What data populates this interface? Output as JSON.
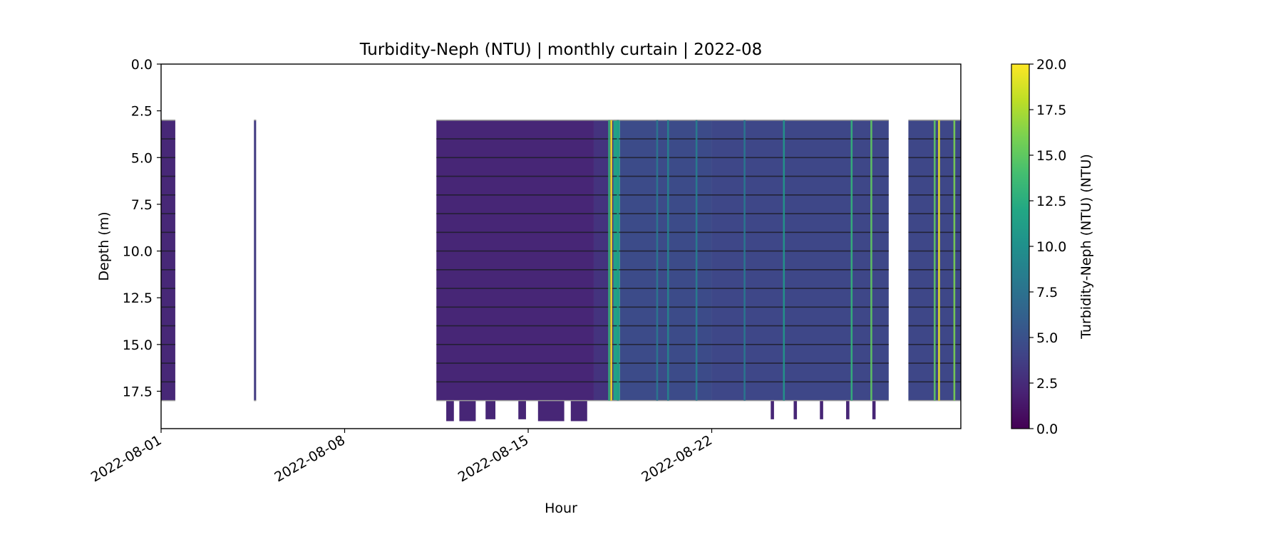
{
  "chart_data": {
    "type": "heatmap",
    "title": "Turbidity-Neph (NTU) | monthly curtain | 2022-08",
    "xlabel": "Hour",
    "ylabel": "Depth (m)",
    "colorbar_label": "Turbidity-Neph (NTU) (NTU)",
    "colormap": "viridis",
    "colorbar_range": [
      0,
      20
    ],
    "colorbar_ticks": [
      "0.0",
      "2.5",
      "5.0",
      "7.5",
      "10.0",
      "12.5",
      "15.0",
      "17.5",
      "20.0"
    ],
    "x_range": [
      "2022-08-01",
      "2022-08-31T12:00"
    ],
    "x_ticks": [
      {
        "date": "2022-08-01",
        "label": "2022-08-01"
      },
      {
        "date": "2022-08-08",
        "label": "2022-08-08"
      },
      {
        "date": "2022-08-15",
        "label": "2022-08-15"
      },
      {
        "date": "2022-08-22",
        "label": "2022-08-22"
      }
    ],
    "y_range": [
      0,
      19.5
    ],
    "y_inverted": true,
    "y_ticks": [
      "0.0",
      "2.5",
      "5.0",
      "7.5",
      "10.0",
      "12.5",
      "15.0",
      "17.5"
    ],
    "grid": false,
    "sample_depths": [
      3,
      4,
      5,
      6,
      7,
      8,
      9,
      10,
      11,
      12,
      13,
      14,
      15,
      16,
      17,
      18
    ],
    "segments": [
      {
        "start": "2022-08-01T00:00",
        "end": "2022-08-01T13:00",
        "depth_top": 3.0,
        "depth_bottom": 18.0,
        "turbidity": 2.3
      },
      {
        "start": "2022-08-04T13:00",
        "end": "2022-08-04T15:00",
        "depth_top": 3.0,
        "depth_bottom": 18.0,
        "turbidity": 3.5
      },
      {
        "start": "2022-08-11T12:00",
        "end": "2022-08-17T12:00",
        "depth_top": 3.0,
        "depth_bottom": 18.0,
        "turbidity": 2.2
      },
      {
        "start": "2022-08-17T12:00",
        "end": "2022-08-18T06:00",
        "depth_top": 3.0,
        "depth_bottom": 18.0,
        "turbidity": 3.0
      },
      {
        "start": "2022-08-18T06:00",
        "end": "2022-08-18T12:00",
        "depth_top": 3.0,
        "depth_bottom": 18.0,
        "turbidity": 11.5
      },
      {
        "start": "2022-08-18T12:00",
        "end": "2022-08-22T00:00",
        "depth_top": 3.0,
        "depth_bottom": 18.0,
        "turbidity": 4.6
      },
      {
        "start": "2022-08-22T00:00",
        "end": "2022-08-28T18:00",
        "depth_top": 3.0,
        "depth_bottom": 18.0,
        "turbidity": 4.3
      },
      {
        "start": "2022-08-29T12:00",
        "end": "2022-08-31T12:00",
        "depth_top": 3.0,
        "depth_bottom": 18.0,
        "turbidity": 4.3
      }
    ],
    "spikes": [
      {
        "time": "2022-08-18T02:00",
        "turbidity": 13.0
      },
      {
        "time": "2022-08-18T04:00",
        "turbidity": 20.0
      },
      {
        "time": "2022-08-18T10:00",
        "turbidity": 11.0
      },
      {
        "time": "2022-08-19T22:00",
        "turbidity": 8.0
      },
      {
        "time": "2022-08-20T08:00",
        "turbidity": 9.0
      },
      {
        "time": "2022-08-21T10:00",
        "turbidity": 8.5
      },
      {
        "time": "2022-08-23T06:00",
        "turbidity": 8.0
      },
      {
        "time": "2022-08-24T18:00",
        "turbidity": 10.5
      },
      {
        "time": "2022-08-27T08:00",
        "turbidity": 13.0
      },
      {
        "time": "2022-08-28T02:00",
        "turbidity": 15.0
      },
      {
        "time": "2022-08-30T12:00",
        "turbidity": 15.0
      },
      {
        "time": "2022-08-30T16:00",
        "turbidity": 19.5
      },
      {
        "time": "2022-08-31T06:00",
        "turbidity": 16.0
      }
    ],
    "deep_dips": [
      {
        "start": "2022-08-11T21:00",
        "end": "2022-08-12T04:00",
        "depth_bottom": 19.1
      },
      {
        "start": "2022-08-12T09:00",
        "end": "2022-08-13T00:00",
        "depth_bottom": 19.1
      },
      {
        "start": "2022-08-13T09:00",
        "end": "2022-08-13T18:00",
        "depth_bottom": 19.0
      },
      {
        "start": "2022-08-14T15:00",
        "end": "2022-08-14T22:00",
        "depth_bottom": 19.0
      },
      {
        "start": "2022-08-15T09:00",
        "end": "2022-08-16T09:00",
        "depth_bottom": 19.1
      },
      {
        "start": "2022-08-16T15:00",
        "end": "2022-08-17T06:00",
        "depth_bottom": 19.1
      },
      {
        "start": "2022-08-24T06:00",
        "end": "2022-08-24T09:00",
        "depth_bottom": 19.0
      },
      {
        "start": "2022-08-25T03:00",
        "end": "2022-08-25T06:00",
        "depth_bottom": 19.0
      },
      {
        "start": "2022-08-26T03:00",
        "end": "2022-08-26T06:00",
        "depth_bottom": 19.0
      },
      {
        "start": "2022-08-27T03:00",
        "end": "2022-08-27T06:00",
        "depth_bottom": 19.0
      },
      {
        "start": "2022-08-28T03:00",
        "end": "2022-08-28T06:00",
        "depth_bottom": 19.0
      }
    ]
  }
}
